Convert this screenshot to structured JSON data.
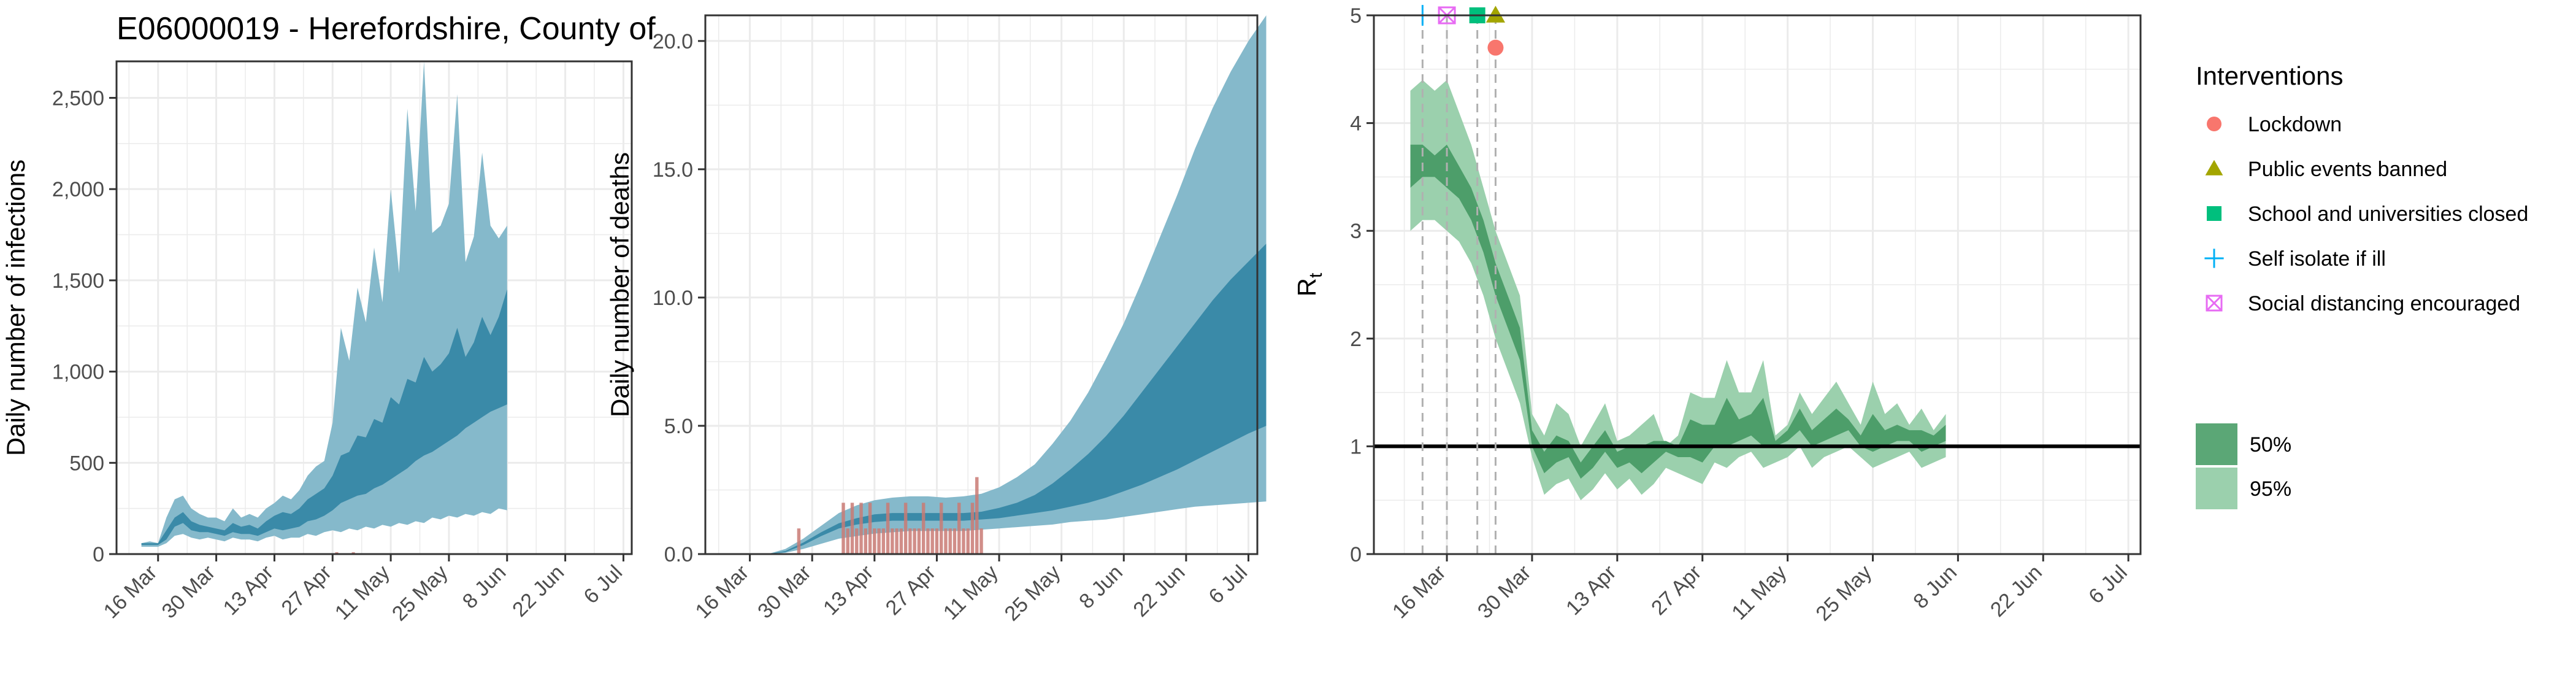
{
  "colors": {
    "infections_95": "#85b9cb",
    "infections_50": "#3a8aa8",
    "deaths_observed": "#c97a74",
    "rt_95": "#9bd0ad",
    "rt_50": "#4d9e6a",
    "grid": "#ebebeb",
    "lockdown": "#f8766d",
    "public_events": "#a3a500",
    "schools": "#00bf7d",
    "self_isolate": "#00b0f6",
    "social_distancing": "#e76bf3"
  },
  "title": "E06000019 - Herefordshire, County of",
  "date_ticks": [
    "16 Mar",
    "30 Mar",
    "13 Apr",
    "27 Apr",
    "11 May",
    "25 May",
    "8 Jun",
    "22 Jun",
    "6 Jul"
  ],
  "legend": {
    "interventions_title": "Interventions",
    "interventions": [
      {
        "label": "Lockdown",
        "shape": "circle",
        "color": "#f8766d"
      },
      {
        "label": "Public events banned",
        "shape": "triangle",
        "color": "#a3a500"
      },
      {
        "label": "School and universities closed",
        "shape": "square",
        "color": "#00bf7d"
      },
      {
        "label": "Self isolate if ill",
        "shape": "plus",
        "color": "#00b0f6"
      },
      {
        "label": "Social distancing encouraged",
        "shape": "boxcross",
        "color": "#e76bf3"
      }
    ],
    "ci": [
      {
        "label": "50%",
        "color": "#5ba776"
      },
      {
        "label": "95%",
        "color": "#9bd0ad"
      }
    ]
  },
  "chart_data": [
    {
      "type": "area",
      "ylabel": "Daily number of infections",
      "ylim": [
        0,
        2700
      ],
      "yticks": [
        0,
        500,
        1000,
        1500,
        2000,
        2500
      ],
      "ytick_labels": [
        "0",
        "500",
        "1,000",
        "1,500",
        "2,000",
        "2,500"
      ],
      "xlim": [
        "2020-03-06",
        "2020-07-08"
      ],
      "x_start": "2020-03-12",
      "x_end": "2020-07-06",
      "step_days": 2,
      "series": [
        {
          "ci": "95%",
          "lower": [
            40,
            40,
            40,
            60,
            100,
            110,
            90,
            80,
            90,
            80,
            70,
            90,
            80,
            80,
            70,
            90,
            100,
            80,
            90,
            90,
            110,
            100,
            120,
            130,
            120,
            140,
            130,
            150,
            140,
            160,
            150,
            170,
            160,
            180,
            170,
            200,
            190,
            210,
            200,
            220,
            210,
            230,
            220,
            250,
            240
          ],
          "upper": [
            60,
            70,
            60,
            200,
            300,
            320,
            250,
            220,
            200,
            200,
            180,
            250,
            200,
            220,
            200,
            250,
            280,
            320,
            300,
            350,
            430,
            480,
            510,
            720,
            1240,
            1060,
            1460,
            1270,
            1680,
            1380,
            2000,
            1540,
            2440,
            1880,
            2700,
            1760,
            1800,
            1920,
            2520,
            1600,
            1740,
            2200,
            1800,
            1730,
            1800
          ]
        },
        {
          "ci": "50%",
          "lower": [
            50,
            50,
            50,
            80,
            150,
            170,
            130,
            120,
            120,
            110,
            100,
            120,
            110,
            110,
            100,
            120,
            140,
            130,
            140,
            150,
            180,
            190,
            210,
            240,
            280,
            300,
            320,
            330,
            360,
            380,
            410,
            440,
            470,
            510,
            540,
            560,
            590,
            620,
            650,
            690,
            720,
            750,
            780,
            800,
            820
          ],
          "upper": [
            60,
            60,
            60,
            130,
            200,
            230,
            180,
            160,
            150,
            140,
            130,
            170,
            150,
            160,
            140,
            180,
            210,
            230,
            220,
            250,
            300,
            330,
            360,
            430,
            540,
            560,
            650,
            640,
            740,
            720,
            860,
            820,
            960,
            940,
            1080,
            1000,
            1040,
            1100,
            1240,
            1080,
            1160,
            1300,
            1200,
            1300,
            1450
          ]
        }
      ],
      "observed": {
        "x": [
          "2020-04-28",
          "2020-05-02"
        ],
        "y": [
          10,
          10
        ]
      }
    },
    {
      "type": "area",
      "ylabel": "Daily number of deaths",
      "ylim": [
        0,
        21
      ],
      "yticks": [
        0,
        5,
        10,
        15,
        20
      ],
      "ytick_labels": [
        "0.0",
        "5.0",
        "10.0",
        "15.0",
        "20.0"
      ],
      "xlim": [
        "2020-03-06",
        "2020-07-08"
      ],
      "x_start": "2020-03-20",
      "x_end": "2020-07-06",
      "step_days": 4,
      "series": [
        {
          "ci": "95%",
          "lower": [
            0,
            0.05,
            0.2,
            0.4,
            0.6,
            0.7,
            0.8,
            0.85,
            0.9,
            0.9,
            0.9,
            0.9,
            0.95,
            1.0,
            1.05,
            1.1,
            1.15,
            1.25,
            1.3,
            1.35,
            1.45,
            1.55,
            1.65,
            1.75,
            1.85,
            1.9,
            1.95,
            2.0,
            2.05
          ],
          "upper": [
            0,
            0.2,
            0.6,
            1.1,
            1.6,
            1.9,
            2.1,
            2.2,
            2.25,
            2.25,
            2.2,
            2.25,
            2.35,
            2.6,
            3.0,
            3.5,
            4.3,
            5.2,
            6.3,
            7.6,
            9.0,
            10.6,
            12.3,
            14.0,
            15.8,
            17.4,
            18.8,
            20.0,
            21.0
          ]
        },
        {
          "ci": "50%",
          "lower": [
            0,
            0.08,
            0.35,
            0.7,
            1.0,
            1.15,
            1.25,
            1.3,
            1.3,
            1.3,
            1.3,
            1.3,
            1.35,
            1.4,
            1.5,
            1.6,
            1.7,
            1.85,
            2.0,
            2.2,
            2.45,
            2.7,
            3.0,
            3.3,
            3.65,
            4.0,
            4.35,
            4.7,
            5.0
          ],
          "upper": [
            0,
            0.12,
            0.45,
            0.85,
            1.2,
            1.4,
            1.55,
            1.6,
            1.6,
            1.6,
            1.6,
            1.6,
            1.65,
            1.8,
            2.0,
            2.3,
            2.75,
            3.3,
            3.9,
            4.6,
            5.4,
            6.3,
            7.2,
            8.1,
            9.0,
            9.9,
            10.7,
            11.4,
            12.1
          ]
        }
      ],
      "observed": {
        "x": [
          "2020-03-27",
          "2020-04-06",
          "2020-04-07",
          "2020-04-08",
          "2020-04-09",
          "2020-04-10",
          "2020-04-11",
          "2020-04-12",
          "2020-04-13",
          "2020-04-14",
          "2020-04-15",
          "2020-04-16",
          "2020-04-17",
          "2020-04-18",
          "2020-04-19",
          "2020-04-20",
          "2020-04-21",
          "2020-04-22",
          "2020-04-23",
          "2020-04-24",
          "2020-04-25",
          "2020-04-26",
          "2020-04-27",
          "2020-04-28",
          "2020-04-29",
          "2020-04-30",
          "2020-05-01",
          "2020-05-02",
          "2020-05-03",
          "2020-05-04",
          "2020-05-05",
          "2020-05-06",
          "2020-05-07"
        ],
        "y": [
          1,
          2,
          1,
          2,
          1,
          2,
          1,
          2,
          1,
          1,
          1,
          2,
          1,
          1,
          1,
          2,
          1,
          1,
          1,
          2,
          1,
          1,
          1,
          2,
          1,
          1,
          1,
          2,
          1,
          1,
          2,
          3,
          1
        ]
      }
    },
    {
      "type": "area",
      "ylabel": "R",
      "ylabel_sub": "t",
      "ylim": [
        0,
        5
      ],
      "yticks": [
        0,
        1,
        2,
        3,
        4,
        5
      ],
      "ytick_labels": [
        "0",
        "1",
        "2",
        "3",
        "4",
        "5"
      ],
      "xlim": [
        "2020-03-04",
        "2020-07-08"
      ],
      "x_start": "2020-03-10",
      "x_end": "2020-07-04",
      "step_days": 2,
      "series": [
        {
          "ci": "95%",
          "lower": [
            3.0,
            3.1,
            3.1,
            3.0,
            2.9,
            2.7,
            2.4,
            2.0,
            1.7,
            1.4,
            0.9,
            0.55,
            0.65,
            0.7,
            0.5,
            0.6,
            0.75,
            0.6,
            0.7,
            0.55,
            0.65,
            0.8,
            0.75,
            0.7,
            0.65,
            0.85,
            0.8,
            0.9,
            0.95,
            0.8,
            0.85,
            0.9,
            1.0,
            0.8,
            0.9,
            0.95,
            1.0,
            0.9,
            0.8,
            0.85,
            0.9,
            0.95,
            0.8,
            0.85,
            0.9
          ],
          "upper": [
            4.3,
            4.4,
            4.3,
            4.4,
            4.1,
            3.8,
            3.4,
            3.0,
            2.7,
            2.4,
            1.3,
            1.1,
            1.4,
            1.3,
            1.0,
            1.2,
            1.4,
            1.05,
            1.1,
            1.2,
            1.3,
            1.0,
            1.1,
            1.5,
            1.45,
            1.45,
            1.8,
            1.5,
            1.5,
            1.8,
            1.1,
            1.2,
            1.5,
            1.3,
            1.45,
            1.6,
            1.4,
            1.2,
            1.6,
            1.3,
            1.4,
            1.2,
            1.35,
            1.15,
            1.3
          ]
        },
        {
          "ci": "50%",
          "lower": [
            3.4,
            3.5,
            3.5,
            3.4,
            3.3,
            3.1,
            2.8,
            2.4,
            2.1,
            1.8,
            1.0,
            0.75,
            0.85,
            0.9,
            0.7,
            0.8,
            0.95,
            0.8,
            0.85,
            0.75,
            0.85,
            0.95,
            0.9,
            0.9,
            0.85,
            1.0,
            1.0,
            1.05,
            1.1,
            1.0,
            1.0,
            1.05,
            1.15,
            1.0,
            1.05,
            1.1,
            1.15,
            1.0,
            0.95,
            1.0,
            1.05,
            1.05,
            0.95,
            1.0,
            1.05
          ],
          "upper": [
            3.8,
            3.8,
            3.7,
            3.8,
            3.6,
            3.4,
            3.1,
            2.7,
            2.4,
            2.1,
            1.15,
            0.95,
            1.1,
            1.05,
            0.85,
            1.0,
            1.15,
            0.95,
            1.0,
            1.0,
            1.05,
            1.05,
            1.0,
            1.25,
            1.2,
            1.2,
            1.45,
            1.25,
            1.3,
            1.45,
            1.05,
            1.15,
            1.35,
            1.15,
            1.25,
            1.35,
            1.25,
            1.1,
            1.3,
            1.15,
            1.2,
            1.15,
            1.15,
            1.1,
            1.2
          ]
        }
      ],
      "reference_line": 1,
      "interventions": [
        {
          "label": "Self isolate if ill",
          "date": "2020-03-12",
          "y": 5.0
        },
        {
          "label": "Social distancing encouraged",
          "date": "2020-03-16",
          "y": 5.0
        },
        {
          "label": "School and universities closed",
          "date": "2020-03-21",
          "y": 5.0
        },
        {
          "label": "Public events banned",
          "date": "2020-03-24",
          "y": 5.0
        },
        {
          "label": "Lockdown",
          "date": "2020-03-24",
          "y": 4.7
        }
      ]
    }
  ]
}
